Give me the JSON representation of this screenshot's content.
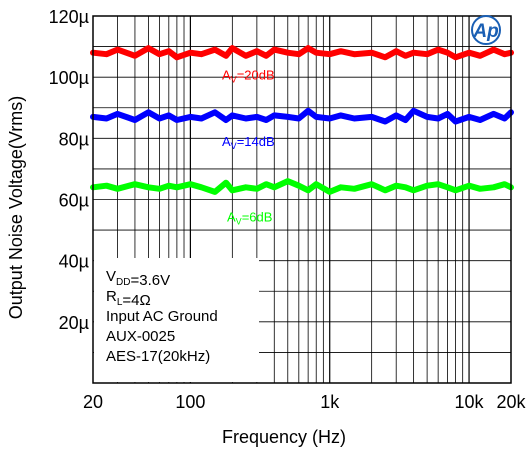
{
  "chart_data": {
    "type": "line",
    "xlabel": "Frequency (Hz)",
    "ylabel": "Output Noise Voltage(Vrms)",
    "x_scale": "log",
    "xlim": [
      20,
      20000
    ],
    "ylim": [
      0,
      120
    ],
    "y_unit": "µVrms",
    "grid": true,
    "x_tick_labels": [
      {
        "value": 20,
        "label": "20"
      },
      {
        "value": 100,
        "label": "100"
      },
      {
        "value": 1000,
        "label": "1k"
      },
      {
        "value": 10000,
        "label": "10k"
      },
      {
        "value": 20000,
        "label": "20k"
      }
    ],
    "y_tick_labels": [
      {
        "value": 20,
        "label": "20µ"
      },
      {
        "value": 40,
        "label": "40µ"
      },
      {
        "value": 60,
        "label": "60µ"
      },
      {
        "value": 80,
        "label": "80µ"
      },
      {
        "value": 100,
        "label": "100µ"
      },
      {
        "value": 120,
        "label": "120µ"
      }
    ],
    "series": [
      {
        "label_main": "A",
        "label_sub": "V",
        "label_rest": "=20dB",
        "color": "#ff0000",
        "x": [
          20,
          25,
          30,
          40,
          50,
          60,
          70,
          80,
          100,
          120,
          150,
          180,
          200,
          250,
          300,
          350,
          400,
          500,
          600,
          700,
          800,
          1000,
          1200,
          1500,
          2000,
          2500,
          3000,
          3500,
          4000,
          5000,
          6000,
          7000,
          8000,
          10000,
          12000,
          15000,
          18000,
          20000
        ],
        "y": [
          108,
          107.5,
          109,
          107,
          109.5,
          107.5,
          108.5,
          106.5,
          108,
          107.5,
          109,
          107,
          109.5,
          107,
          108.5,
          107,
          109,
          108,
          107.5,
          109.5,
          108,
          107.5,
          108.5,
          107.5,
          108,
          106.5,
          108.5,
          107,
          108,
          107.5,
          109,
          108,
          106.5,
          108,
          107,
          109,
          107.5,
          108
        ]
      },
      {
        "label_main": "A",
        "label_sub": "V",
        "label_rest": "=14dB",
        "color": "#0000ff",
        "x": [
          20,
          25,
          30,
          40,
          50,
          60,
          70,
          80,
          100,
          120,
          150,
          180,
          200,
          250,
          300,
          350,
          400,
          500,
          600,
          700,
          800,
          1000,
          1200,
          1500,
          2000,
          2500,
          3000,
          3500,
          4000,
          5000,
          6000,
          7000,
          8000,
          10000,
          12000,
          15000,
          18000,
          20000
        ],
        "y": [
          87,
          86.5,
          88,
          86,
          88.5,
          86.5,
          87.5,
          86,
          87,
          86.5,
          88.5,
          86,
          87.5,
          86.5,
          87,
          86,
          87.5,
          87,
          86.5,
          89,
          87,
          86.5,
          87.5,
          86.5,
          87,
          85.5,
          87.5,
          86,
          89,
          87,
          86.5,
          88,
          85.5,
          87,
          86,
          88,
          86.5,
          88.5
        ]
      },
      {
        "label_main": "A",
        "label_sub": "V",
        "label_rest": "=6dB",
        "color": "#00ff00",
        "x": [
          20,
          25,
          30,
          40,
          50,
          60,
          70,
          80,
          100,
          120,
          150,
          180,
          200,
          250,
          300,
          350,
          400,
          500,
          600,
          700,
          800,
          1000,
          1200,
          1500,
          2000,
          2500,
          3000,
          3500,
          4000,
          5000,
          6000,
          7000,
          8000,
          10000,
          12000,
          15000,
          18000,
          20000
        ],
        "y": [
          64,
          64.5,
          63.5,
          65,
          64,
          63.5,
          64.5,
          64,
          65,
          64,
          62.5,
          65.5,
          63,
          64,
          63.5,
          65,
          64,
          66,
          64.5,
          63,
          65,
          62.5,
          64,
          63.5,
          65,
          63,
          64.5,
          64,
          63,
          64.5,
          65,
          64,
          63,
          64.5,
          63.5,
          64,
          65,
          64
        ]
      }
    ],
    "annotation_lines": [
      [
        {
          "t": "V"
        },
        {
          "sub": "DD"
        },
        {
          "t": "=3.6V"
        }
      ],
      [
        {
          "t": "R"
        },
        {
          "sub": "L"
        },
        {
          "t": "=4Ω"
        }
      ],
      [
        {
          "t": "Input AC Ground"
        }
      ],
      [
        {
          "t": "AUX-0025"
        }
      ],
      [
        {
          "t": "AES-17(20kHz)"
        }
      ]
    ],
    "logo_text": "Ap"
  }
}
